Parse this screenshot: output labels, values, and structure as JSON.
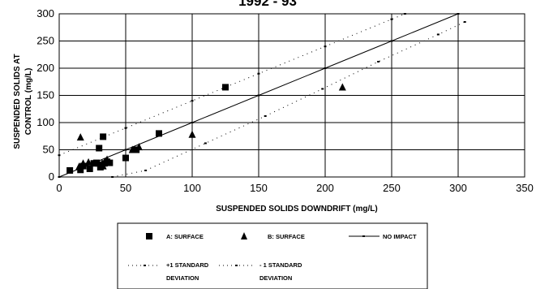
{
  "chart_data": {
    "type": "scatter",
    "title": "1992 - 93",
    "xlabel": "SUSPENDED SOLIDS DOWNDRIFT (mg/L)",
    "ylabel": [
      "SUSPENDED SOLIDS AT",
      "CONTROL (mg/L)"
    ],
    "xlim": [
      0,
      350
    ],
    "ylim": [
      0,
      300
    ],
    "xticks": [
      0,
      50,
      100,
      150,
      200,
      250,
      300,
      350
    ],
    "yticks": [
      0,
      50,
      100,
      150,
      200,
      250,
      300
    ],
    "grid": true,
    "legend_position": "bottom",
    "series": [
      {
        "name": "A: SURFACE",
        "marker": "square",
        "points": [
          [
            8,
            12
          ],
          [
            16,
            13
          ],
          [
            18,
            20
          ],
          [
            23,
            15
          ],
          [
            26,
            25
          ],
          [
            28,
            26
          ],
          [
            30,
            53
          ],
          [
            31,
            18
          ],
          [
            32,
            22
          ],
          [
            33,
            74
          ],
          [
            34,
            25
          ],
          [
            36,
            28
          ],
          [
            38,
            26
          ],
          [
            50,
            35
          ],
          [
            58,
            50
          ],
          [
            75,
            80
          ],
          [
            125,
            165
          ]
        ]
      },
      {
        "name": "B: SURFACE",
        "marker": "triangle",
        "points": [
          [
            15,
            19
          ],
          [
            16,
            73
          ],
          [
            18,
            25
          ],
          [
            22,
            27
          ],
          [
            30,
            25
          ],
          [
            33,
            20
          ],
          [
            36,
            32
          ],
          [
            55,
            50
          ],
          [
            60,
            55
          ],
          [
            100,
            78
          ],
          [
            213,
            165
          ]
        ]
      },
      {
        "name": "NO IMPACT",
        "style": "solid-line",
        "points": [
          [
            0,
            0
          ],
          [
            50,
            50
          ],
          [
            100,
            100
          ],
          [
            150,
            150
          ],
          [
            200,
            200
          ],
          [
            250,
            250
          ],
          [
            300,
            300
          ]
        ]
      },
      {
        "name": "+1 STANDARD DEVIATION",
        "style": "dotted-line",
        "points": [
          [
            0,
            40
          ],
          [
            50,
            90
          ],
          [
            100,
            140
          ],
          [
            150,
            190
          ],
          [
            200,
            240
          ],
          [
            250,
            290
          ],
          [
            260,
            300
          ]
        ]
      },
      {
        "name": "-1 STANDARD DEVIATION",
        "style": "dotted-line",
        "points": [
          [
            40,
            0
          ],
          [
            65,
            12
          ],
          [
            110,
            62
          ],
          [
            155,
            112
          ],
          [
            198,
            162
          ],
          [
            240,
            212
          ],
          [
            285,
            262
          ],
          [
            305,
            285
          ]
        ]
      }
    ]
  },
  "legend": {
    "items": [
      {
        "line1": "A: SURFACE",
        "line2": ""
      },
      {
        "line1": "B: SURFACE",
        "line2": ""
      },
      {
        "line1": "NO IMPACT",
        "line2": ""
      },
      {
        "line1": "+1 STANDARD",
        "line2": "DEVIATION"
      },
      {
        "line1": "- 1 STANDARD",
        "line2": "DEVIATION"
      }
    ]
  }
}
